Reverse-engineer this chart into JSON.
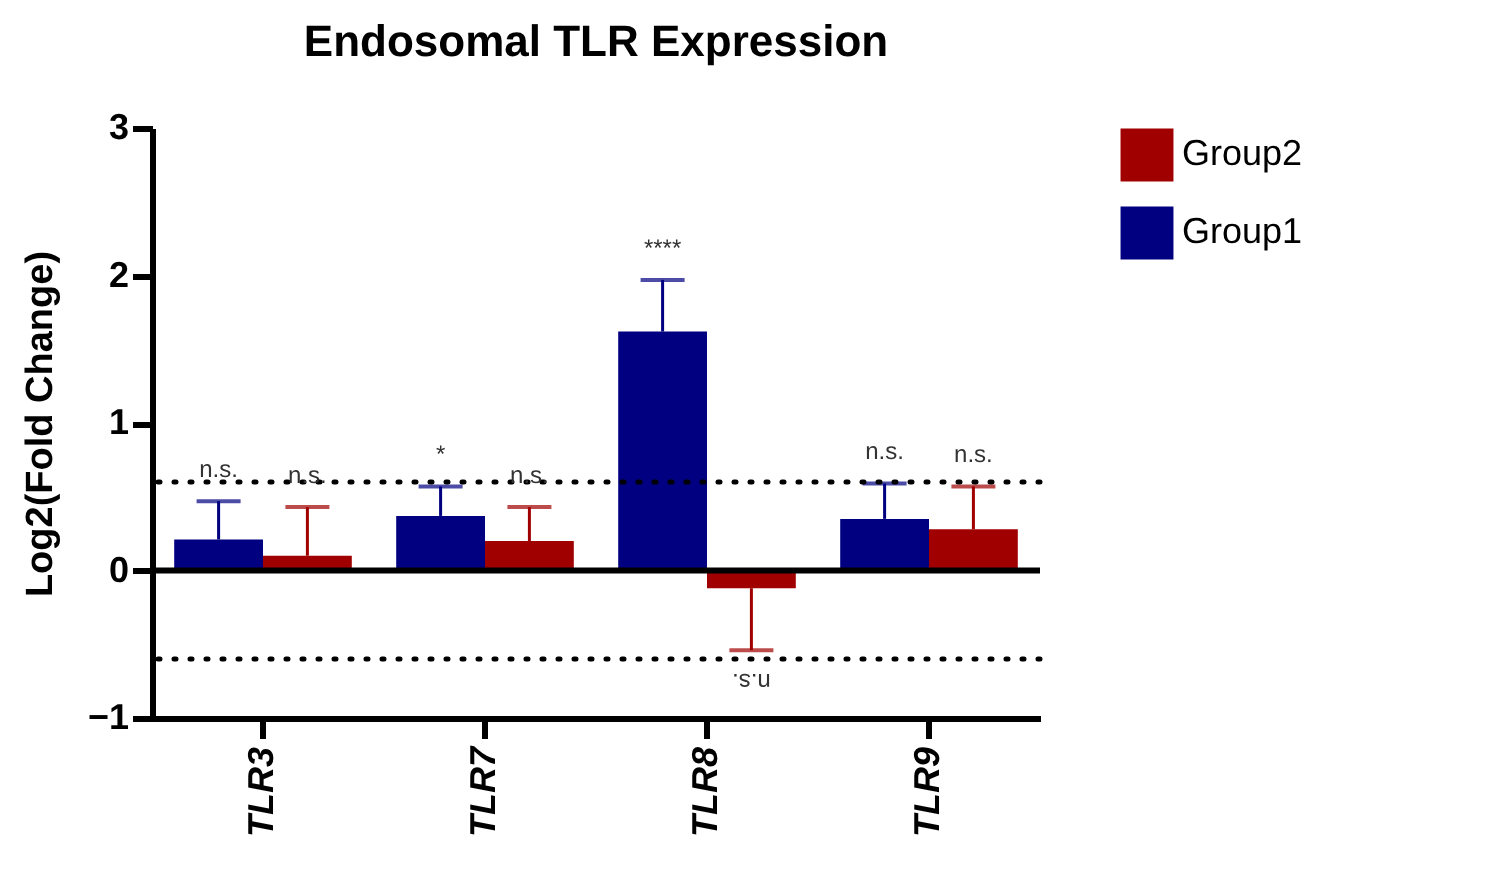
{
  "chart_data": {
    "type": "bar",
    "title": "Endosomal TLR Expression",
    "ylabel": "Log2(Fold Change)",
    "categories": [
      "TLR3",
      "TLR7",
      "TLR8",
      "TLR9"
    ],
    "series": [
      {
        "name": "Group1",
        "color": "#000080",
        "values": [
          0.21,
          0.37,
          1.62,
          0.35
        ],
        "errors": [
          [
            0.21,
            0.47
          ],
          [
            0.37,
            0.57
          ],
          [
            1.62,
            1.97
          ],
          [
            0.35,
            0.59
          ]
        ]
      },
      {
        "name": "Group2",
        "color": "#a00000",
        "values": [
          0.1,
          0.2,
          -0.12,
          0.28
        ],
        "errors": [
          [
            0.1,
            0.43
          ],
          [
            0.2,
            0.43
          ],
          [
            -0.54,
            -0.12
          ],
          [
            0.28,
            0.57
          ]
        ]
      }
    ],
    "ylim": [
      -1,
      3
    ],
    "yticks": [
      -1,
      0,
      1,
      2,
      3
    ],
    "grid": false,
    "legend": "top right",
    "ref_lines": [
      {
        "axis": "y",
        "value": 0.6,
        "line_style": "dotted"
      },
      {
        "axis": "y",
        "value": -0.6,
        "line_style": "dotted"
      },
      {
        "axis": "y",
        "value": 0,
        "line_style": "solid"
      }
    ],
    "annotations": [
      "n.s.",
      "n.s.",
      "*",
      "n.s.",
      "****",
      "n.s.",
      "n.s.",
      "n.s."
    ]
  }
}
